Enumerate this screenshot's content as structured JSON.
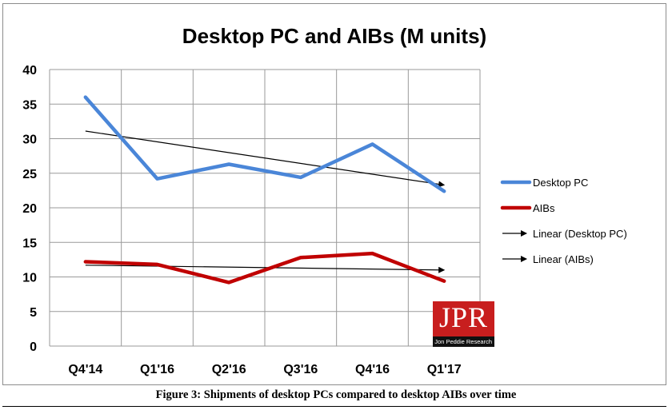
{
  "chart_data": {
    "type": "line",
    "title": "Desktop PC and AIBs (M units)",
    "categories": [
      "Q4'14",
      "Q1'16",
      "Q2'16",
      "Q3'16",
      "Q4'16",
      "Q1'17"
    ],
    "ylim": [
      0,
      40
    ],
    "yticks": [
      0,
      5,
      10,
      15,
      20,
      25,
      30,
      35,
      40
    ],
    "grid": true,
    "legend_position": "right",
    "series": [
      {
        "name": "Desktop PC",
        "color": "#4a86d8",
        "values": [
          36.0,
          24.2,
          26.3,
          24.4,
          29.2,
          22.4
        ]
      },
      {
        "name": "AIBs",
        "color": "#c00000",
        "values": [
          12.2,
          11.8,
          9.2,
          12.8,
          13.4,
          9.4
        ]
      }
    ],
    "trendlines": [
      {
        "name": "Linear (Desktop PC)",
        "color": "#000000",
        "from": 31.1,
        "to": 23.3
      },
      {
        "name": "Linear (AIBs)",
        "color": "#000000",
        "from": 11.7,
        "to": 11.0
      }
    ]
  },
  "logo": {
    "mark": "JPR",
    "subtitle": "Jon Peddie Research"
  },
  "caption": "Figure 3: Shipments of desktop PCs compared to desktop AIBs over time"
}
